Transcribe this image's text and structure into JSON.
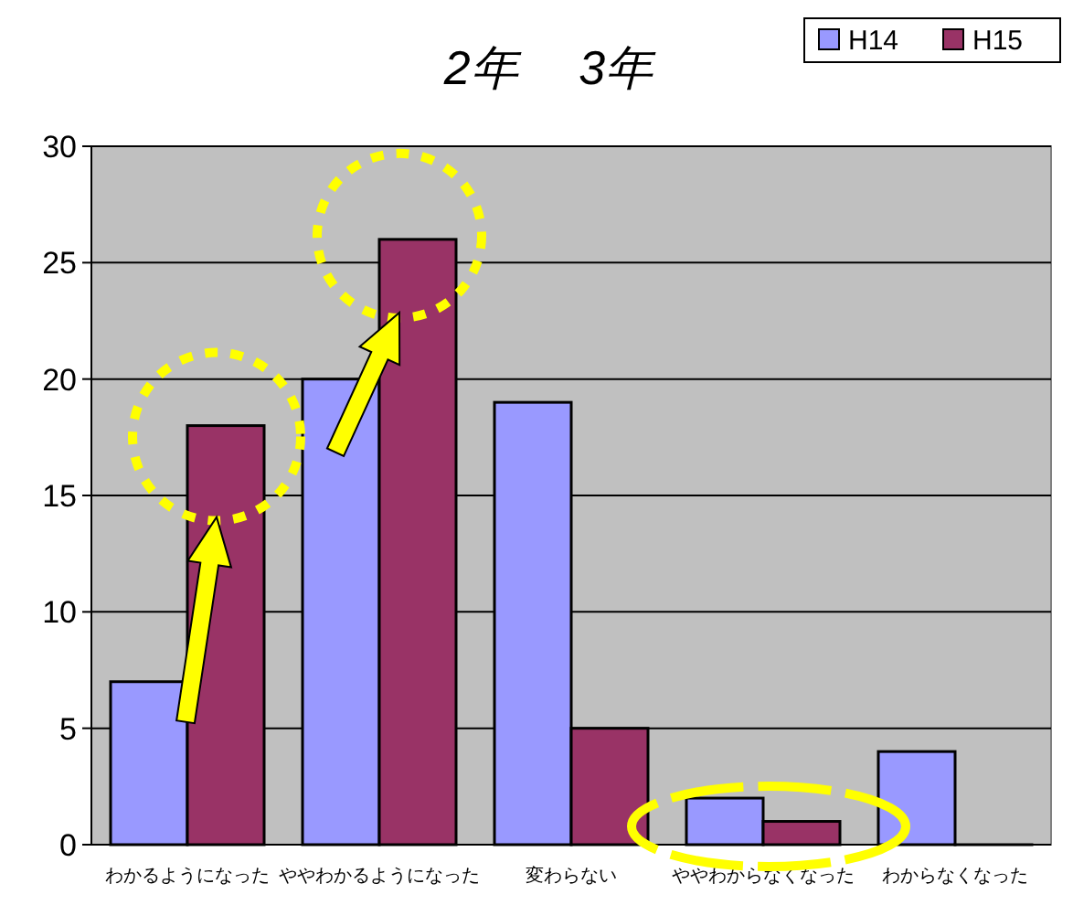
{
  "chart_data": {
    "type": "bar",
    "title": "2年　 3年",
    "categories": [
      "わかるようになった",
      "ややわかるようになった",
      "変わらない",
      "ややわからなくなった",
      "わからなくなった"
    ],
    "series": [
      {
        "name": "H14",
        "color": "#9999ff",
        "values": [
          7,
          20,
          19,
          2,
          4
        ]
      },
      {
        "name": "H15",
        "color": "#993366",
        "values": [
          18,
          26,
          5,
          1,
          0
        ]
      }
    ],
    "ylim": [
      0,
      30
    ],
    "yticks": [
      0,
      5,
      10,
      15,
      20,
      25,
      30
    ],
    "grid": "y",
    "legend": "top right"
  }
}
